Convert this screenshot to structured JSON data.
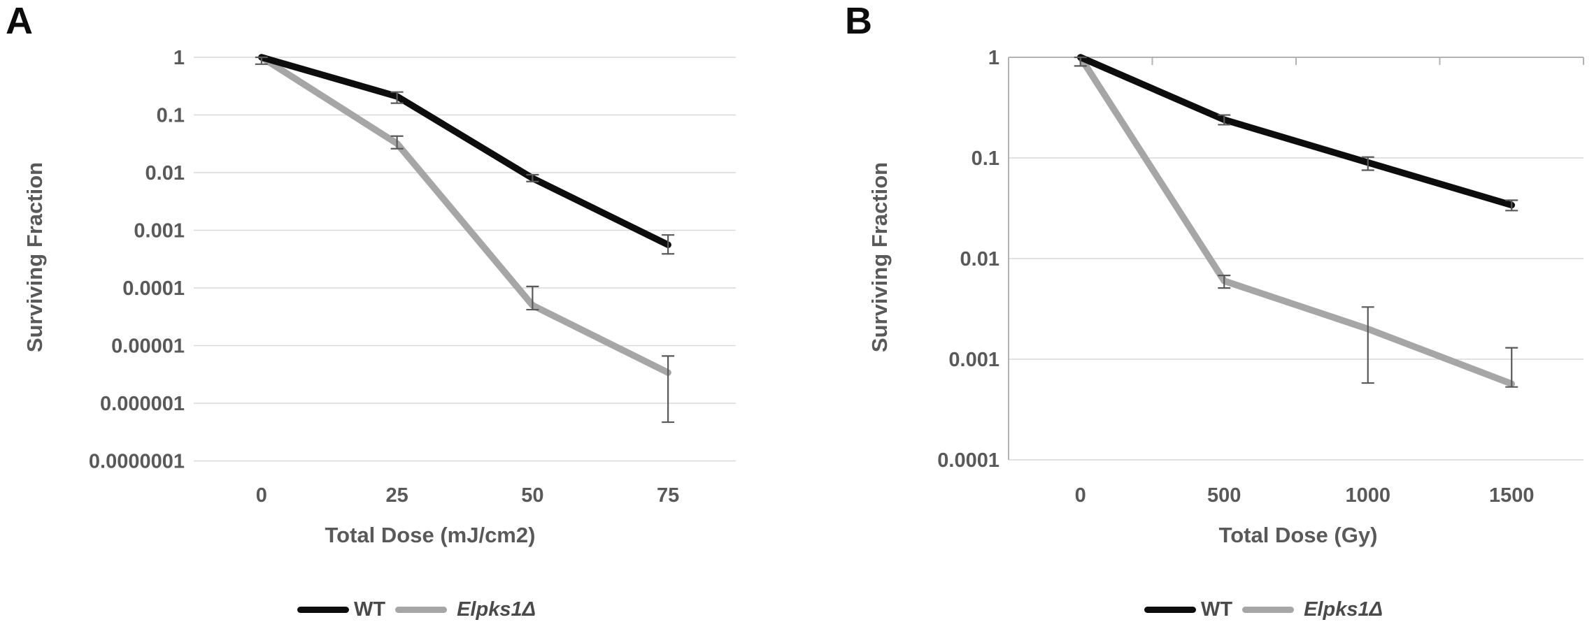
{
  "figure": {
    "background": "#ffffff",
    "text_color": "#595959",
    "gridline_color": "#d9d9d9",
    "axisline_color": "#b3b3b3",
    "errorbar_color": "#595959"
  },
  "chart_data": [
    {
      "id": "A",
      "panel_label": "A",
      "type": "line",
      "log_scale_y": true,
      "grid": true,
      "legend_position": "bottom",
      "xlabel": "Total Dose (mJ/cm2)",
      "ylabel": "Surviving Fraction",
      "categories": [
        "0",
        "25",
        "50",
        "75"
      ],
      "yticks": [
        "1",
        "0.1",
        "0.01",
        "0.001",
        "0.0001",
        "0.00001",
        "0.000001",
        "0.0000001"
      ],
      "ylim": [
        1e-07,
        1
      ],
      "series": [
        {
          "name": "WT",
          "color": "#0d0d0d",
          "values": [
            1,
            0.21,
            0.008,
            0.00056
          ],
          "error_bars": [
            [
              1.0,
              0.76
            ],
            [
              0.25,
              0.16
            ],
            [
              0.0092,
              0.007
            ],
            [
              0.00083,
              0.00039
            ]
          ]
        },
        {
          "name": "Elpks1Δ",
          "color": "#a6a6a6",
          "values": [
            1,
            0.032,
            5e-05,
            3.4e-06
          ],
          "error_bars": [
            null,
            [
              0.043,
              0.026
            ],
            [
              0.000106,
              4.2e-05
            ],
            [
              6.6e-06,
              4.7e-07
            ]
          ]
        }
      ]
    },
    {
      "id": "B",
      "panel_label": "B",
      "type": "line",
      "log_scale_y": true,
      "grid": true,
      "legend_position": "bottom",
      "xlabel": "Total Dose (Gy)",
      "ylabel": "Surviving Fraction",
      "categories": [
        "0",
        "500",
        "1000",
        "1500"
      ],
      "yticks": [
        "1",
        "0.1",
        "0.01",
        "0.001",
        "0.0001"
      ],
      "ylim": [
        0.0001,
        1
      ],
      "series": [
        {
          "name": "WT",
          "color": "#0d0d0d",
          "values": [
            1,
            0.24,
            0.09,
            0.034
          ],
          "error_bars": [
            [
              1.0,
              0.82
            ],
            [
              0.267,
              0.214
            ],
            [
              0.102,
              0.0756
            ],
            [
              0.038,
              0.03
            ]
          ]
        },
        {
          "name": "Elpks1Δ",
          "color": "#a6a6a6",
          "values": [
            1,
            0.006,
            0.002,
            0.00057
          ],
          "error_bars": [
            null,
            [
              0.0068,
              0.0051
            ],
            [
              0.0033,
              0.00058
            ],
            [
              0.0013,
              0.00053
            ]
          ]
        }
      ]
    }
  ]
}
